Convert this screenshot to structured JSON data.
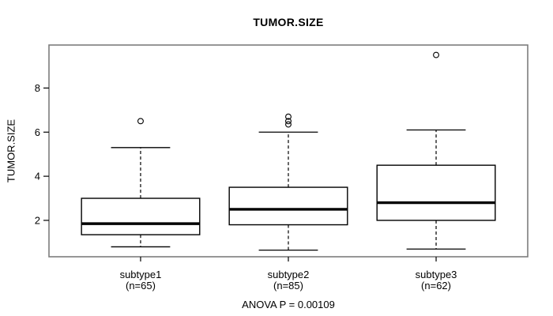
{
  "chart_data": {
    "type": "boxplot",
    "title": "TUMOR.SIZE",
    "ylabel": "TUMOR.SIZE",
    "footnote": "ANOVA P = 0.00109",
    "y_ticks": [
      2,
      4,
      6,
      8
    ],
    "ylim": [
      0.35,
      9.95
    ],
    "grid": false,
    "legend": "none",
    "groups": [
      {
        "label": "subtype1",
        "sublabel": "(n=65)",
        "lower_whisker": 0.8,
        "q1": 1.35,
        "median": 1.85,
        "q3": 3.0,
        "upper_whisker": 5.3,
        "outliers": [
          6.5
        ]
      },
      {
        "label": "subtype2",
        "sublabel": "(n=85)",
        "lower_whisker": 0.65,
        "q1": 1.8,
        "median": 2.5,
        "q3": 3.5,
        "upper_whisker": 6.0,
        "outliers": [
          6.35,
          6.5,
          6.7
        ]
      },
      {
        "label": "subtype3",
        "sublabel": "(n=62)",
        "lower_whisker": 0.7,
        "q1": 2.0,
        "median": 2.8,
        "q3": 4.5,
        "upper_whisker": 6.1,
        "outliers": [
          9.5
        ]
      }
    ],
    "colors": {
      "line": "#000000",
      "frame": "#7d7d7d",
      "box_fill": "#ffffff",
      "background": "#ffffff"
    }
  }
}
